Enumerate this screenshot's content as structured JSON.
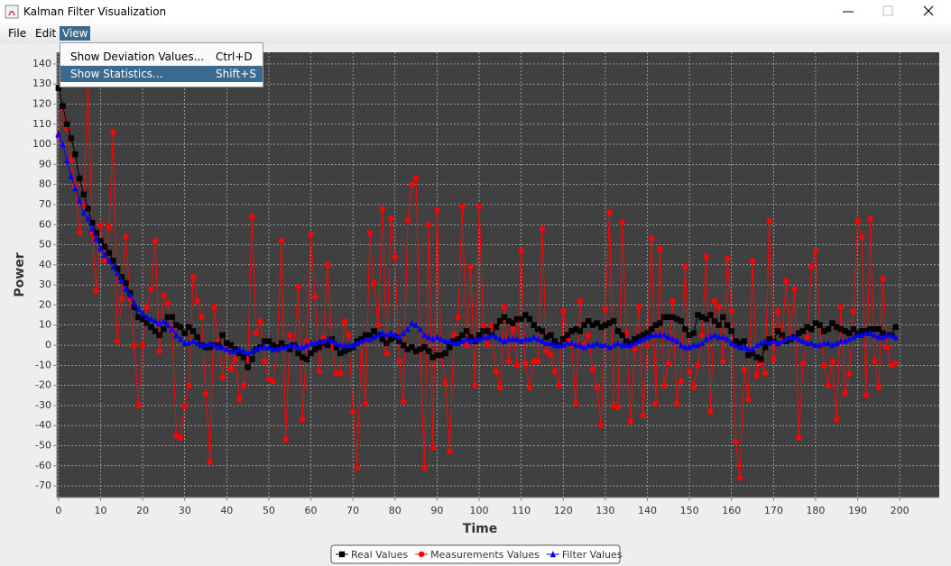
{
  "window": {
    "title": "Kalman Filter Visualization"
  },
  "menu": {
    "items": [
      "File",
      "Edit",
      "View"
    ],
    "open": "View",
    "dropdown": [
      {
        "label": "Show Deviation Values...",
        "shortcut": "Ctrl+D"
      },
      {
        "label": "Show Statistics...",
        "shortcut": "Shift+S"
      }
    ]
  },
  "chart_data": {
    "type": "line",
    "xlabel": "Time",
    "ylabel": "Power",
    "grid": true,
    "legend": "bottom",
    "xlim": [
      -0.4,
      209.4
    ],
    "ylim": [
      -75.8,
      145.8
    ],
    "xticks": [
      0,
      10,
      20,
      30,
      40,
      50,
      60,
      70,
      80,
      90,
      100,
      110,
      120,
      130,
      140,
      150,
      160,
      170,
      180,
      190,
      200
    ],
    "yticks": [
      -70,
      -60,
      -50,
      -40,
      -30,
      -20,
      -10,
      0,
      10,
      20,
      30,
      40,
      50,
      60,
      70,
      80,
      90,
      100,
      110,
      120,
      130,
      140
    ],
    "x": [
      0,
      1,
      2,
      3,
      4,
      5,
      6,
      7,
      8,
      9,
      10,
      11,
      12,
      13,
      14,
      15,
      16,
      17,
      18,
      19,
      20,
      21,
      22,
      23,
      24,
      25,
      26,
      27,
      28,
      29,
      30,
      31,
      32,
      33,
      34,
      35,
      36,
      37,
      38,
      39,
      40,
      41,
      42,
      43,
      44,
      45,
      46,
      47,
      48,
      49,
      50,
      51,
      52,
      53,
      54,
      55,
      56,
      57,
      58,
      59,
      60,
      61,
      62,
      63,
      64,
      65,
      66,
      67,
      68,
      69,
      70,
      71,
      72,
      73,
      74,
      75,
      76,
      77,
      78,
      79,
      80,
      81,
      82,
      83,
      84,
      85,
      86,
      87,
      88,
      89,
      90,
      91,
      92,
      93,
      94,
      95,
      96,
      97,
      98,
      99,
      100,
      101,
      102,
      103,
      104,
      105,
      106,
      107,
      108,
      109,
      110,
      111,
      112,
      113,
      114,
      115,
      116,
      117,
      118,
      119,
      120,
      121,
      122,
      123,
      124,
      125,
      126,
      127,
      128,
      129,
      130,
      131,
      132,
      133,
      134,
      135,
      136,
      137,
      138,
      139,
      140,
      141,
      142,
      143,
      144,
      145,
      146,
      147,
      148,
      149,
      150,
      151,
      152,
      153,
      154,
      155,
      156,
      157,
      158,
      159,
      160,
      161,
      162,
      163,
      164,
      165,
      166,
      167,
      168,
      169,
      170,
      171,
      172,
      173,
      174,
      175,
      176,
      177,
      178,
      179,
      180,
      181,
      182,
      183,
      184,
      185,
      186,
      187,
      188,
      189,
      190,
      191,
      192,
      193,
      194,
      195,
      196,
      197,
      198,
      199
    ],
    "series": [
      {
        "name": "Real Values",
        "color": "#000000",
        "marker": "square",
        "values": [
          128,
          119,
          110,
          103,
          95,
          83,
          75,
          68,
          61,
          56,
          52,
          49,
          46,
          42,
          38,
          34,
          31,
          26,
          19,
          14,
          13,
          11,
          9,
          7,
          5,
          8,
          14,
          14,
          10,
          9,
          6,
          9,
          7,
          4,
          0,
          -1,
          -1,
          0,
          0,
          5,
          1,
          0,
          -2,
          -4,
          -6,
          -11,
          -7,
          -2,
          -1,
          2,
          2,
          0,
          -1,
          1,
          -1,
          -2,
          0,
          -4,
          -6,
          -7,
          -4,
          -2,
          -1,
          1,
          0,
          3,
          -1,
          -4,
          -3,
          -2,
          -1,
          2,
          3,
          5,
          5,
          7,
          5,
          3,
          1,
          3,
          4,
          2,
          0,
          -2,
          -1,
          -3,
          -2,
          -1,
          -3,
          -6,
          -5,
          -5,
          -4,
          -1,
          2,
          3,
          5,
          7,
          4,
          2,
          5,
          7,
          7,
          5,
          9,
          12,
          14,
          12,
          11,
          13,
          13,
          15,
          13,
          10,
          8,
          7,
          4,
          5,
          2,
          0,
          3,
          5,
          7,
          8,
          7,
          10,
          12,
          10,
          11,
          9,
          10,
          11,
          12,
          7,
          5,
          2,
          1,
          3,
          4,
          5,
          6,
          8,
          10,
          11,
          14,
          14,
          14,
          13,
          12,
          8,
          5,
          6,
          15,
          14,
          13,
          15,
          12,
          10,
          14,
          10,
          7,
          2,
          1,
          2,
          -5,
          -4,
          -6,
          -7,
          -1,
          3,
          2,
          7,
          5,
          2,
          3,
          4,
          6,
          7,
          9,
          8,
          11,
          10,
          7,
          8,
          11,
          9,
          8,
          7,
          6,
          8,
          6,
          7,
          7,
          8,
          8,
          8,
          6,
          5,
          5,
          9
        ]
      },
      {
        "name": "Measurements Values",
        "color": "#ff0000",
        "marker": "circle",
        "values": [
          104,
          118,
          108,
          92,
          79,
          56,
          69,
          130,
          56,
          27,
          60,
          42,
          59,
          106,
          2,
          23,
          54,
          23,
          0,
          -30,
          0,
          19,
          28,
          52,
          -3,
          25,
          21,
          8,
          -45,
          -46,
          -30,
          -20,
          34,
          22,
          14,
          -24,
          -58,
          19,
          2,
          -16,
          0,
          -12,
          -7,
          -27,
          -20,
          -7,
          64,
          6,
          12,
          -8,
          -17,
          -18,
          0,
          52,
          -47,
          5,
          0,
          29,
          -37,
          2,
          55,
          24,
          -13,
          4,
          40,
          0,
          -14,
          -14,
          12,
          5,
          -33,
          -61,
          2,
          -29,
          56,
          31,
          10,
          68,
          -4,
          63,
          44,
          -8,
          -28,
          62,
          80,
          83,
          -3,
          -61,
          60,
          -51,
          67,
          -6,
          -19,
          -53,
          5,
          14,
          69,
          0,
          39,
          -20,
          69,
          10,
          0,
          10,
          -13,
          -21,
          19,
          -8,
          8,
          -10,
          47,
          -9,
          -21,
          -8,
          -8,
          58,
          -3,
          -5,
          -13,
          -20,
          17,
          3,
          0,
          -29,
          22,
          0,
          5,
          -12,
          -21,
          -40,
          18,
          66,
          -30,
          -31,
          61,
          6,
          -38,
          -2,
          19,
          -35,
          0,
          53,
          -29,
          48,
          -20,
          -9,
          22,
          -29,
          -18,
          39,
          -13,
          -21,
          -10,
          5,
          44,
          -33,
          22,
          19,
          -8,
          43,
          17,
          -48,
          -66,
          -12,
          -27,
          42,
          -15,
          -9,
          -14,
          62,
          -7,
          17,
          4,
          32,
          4,
          28,
          -46,
          -9,
          4,
          39,
          47,
          10,
          -10,
          -20,
          -8,
          -37,
          19,
          -24,
          -14,
          17,
          62,
          54,
          -25,
          63,
          -8,
          -21,
          33,
          -1,
          -10,
          -9
        ]
      },
      {
        "name": "Filter Values",
        "color": "#0000ff",
        "marker": "triangle",
        "values": [
          105,
          100,
          92,
          84,
          78,
          72,
          66,
          63,
          58,
          53,
          48,
          45,
          42,
          39,
          36,
          32,
          28,
          25,
          21,
          18,
          16,
          14,
          13,
          12,
          11,
          12,
          10,
          8,
          5,
          3,
          1,
          1,
          2,
          1,
          0,
          0,
          1,
          0,
          -1,
          -1,
          -2,
          -3,
          -3,
          -2,
          -3,
          -4,
          -3,
          -2,
          -1,
          -1,
          -1,
          -2,
          -2,
          -1,
          -1,
          0,
          0,
          -1,
          -1,
          0,
          1,
          1,
          2,
          2,
          3,
          2,
          1,
          0,
          0,
          0,
          0,
          1,
          2,
          3,
          3,
          4,
          5,
          6,
          5,
          6,
          5,
          4,
          6,
          8,
          11,
          10,
          8,
          5,
          4,
          3,
          4,
          3,
          2,
          2,
          1,
          1,
          2,
          3,
          2,
          3,
          3,
          4,
          4,
          5,
          4,
          3,
          2,
          3,
          3,
          3,
          2,
          3,
          3,
          4,
          3,
          2,
          1,
          1,
          0,
          0,
          0,
          1,
          1,
          0,
          0,
          -1,
          0,
          0,
          1,
          0,
          0,
          -1,
          0,
          1,
          0,
          0,
          0,
          1,
          2,
          3,
          4,
          5,
          5,
          5,
          5,
          4,
          3,
          2,
          0,
          -1,
          -1,
          0,
          0,
          1,
          3,
          4,
          5,
          4,
          4,
          3,
          1,
          0,
          -1,
          -1,
          -2,
          -2,
          0,
          1,
          2,
          1,
          2,
          1,
          2,
          3,
          4,
          4,
          3,
          2,
          1,
          1,
          0,
          0,
          1,
          1,
          0,
          1,
          2,
          2,
          3,
          4,
          5,
          5,
          6,
          6,
          5,
          4,
          4,
          5,
          5,
          4
        ]
      }
    ]
  }
}
